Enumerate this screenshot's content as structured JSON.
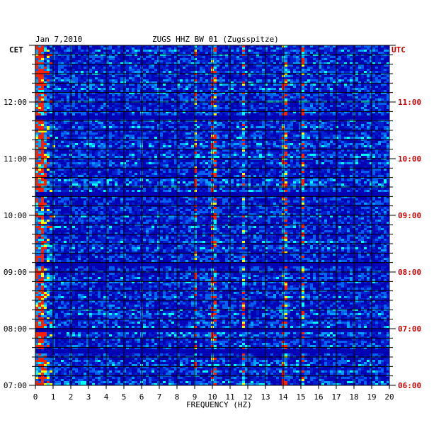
{
  "chart_data": {
    "type": "heatmap",
    "date": "Jan 7,2010",
    "station": "ZUGS HHZ BW 01 (Zugsspitze)",
    "left_axis_label": "CET",
    "right_axis_label": "UTC",
    "xlabel": "FREQUENCY (HZ)",
    "x_ticks": [
      "0",
      "1",
      "2",
      "3",
      "4",
      "5",
      "6",
      "7",
      "8",
      "9",
      "10",
      "11",
      "12",
      "13",
      "14",
      "15",
      "16",
      "17",
      "18",
      "19",
      "20"
    ],
    "xlim": [
      0,
      20
    ],
    "left_time_ticks": [
      "07:00",
      "08:00",
      "09:00",
      "10:00",
      "11:00",
      "12:00"
    ],
    "right_time_ticks": [
      "06:00",
      "07:00",
      "08:00",
      "09:00",
      "10:00",
      "11:00"
    ],
    "time_range_cet": [
      "07:00",
      "13:00"
    ],
    "colors": {
      "background": "#0000b4",
      "low": "#0020d0",
      "mid": "#00a0ff",
      "high": "#00ffff",
      "peak": "#ffff00",
      "max": "#ff2000",
      "utc_label": "#cc0000"
    },
    "strong_frequency_lines_hz": [
      0.3,
      9.0,
      10.0,
      11.7,
      14.0,
      15.0
    ],
    "quiet_time_bands_cet": [
      "07:37",
      "08:00",
      "09:10",
      "10:23",
      "11:44"
    ]
  }
}
